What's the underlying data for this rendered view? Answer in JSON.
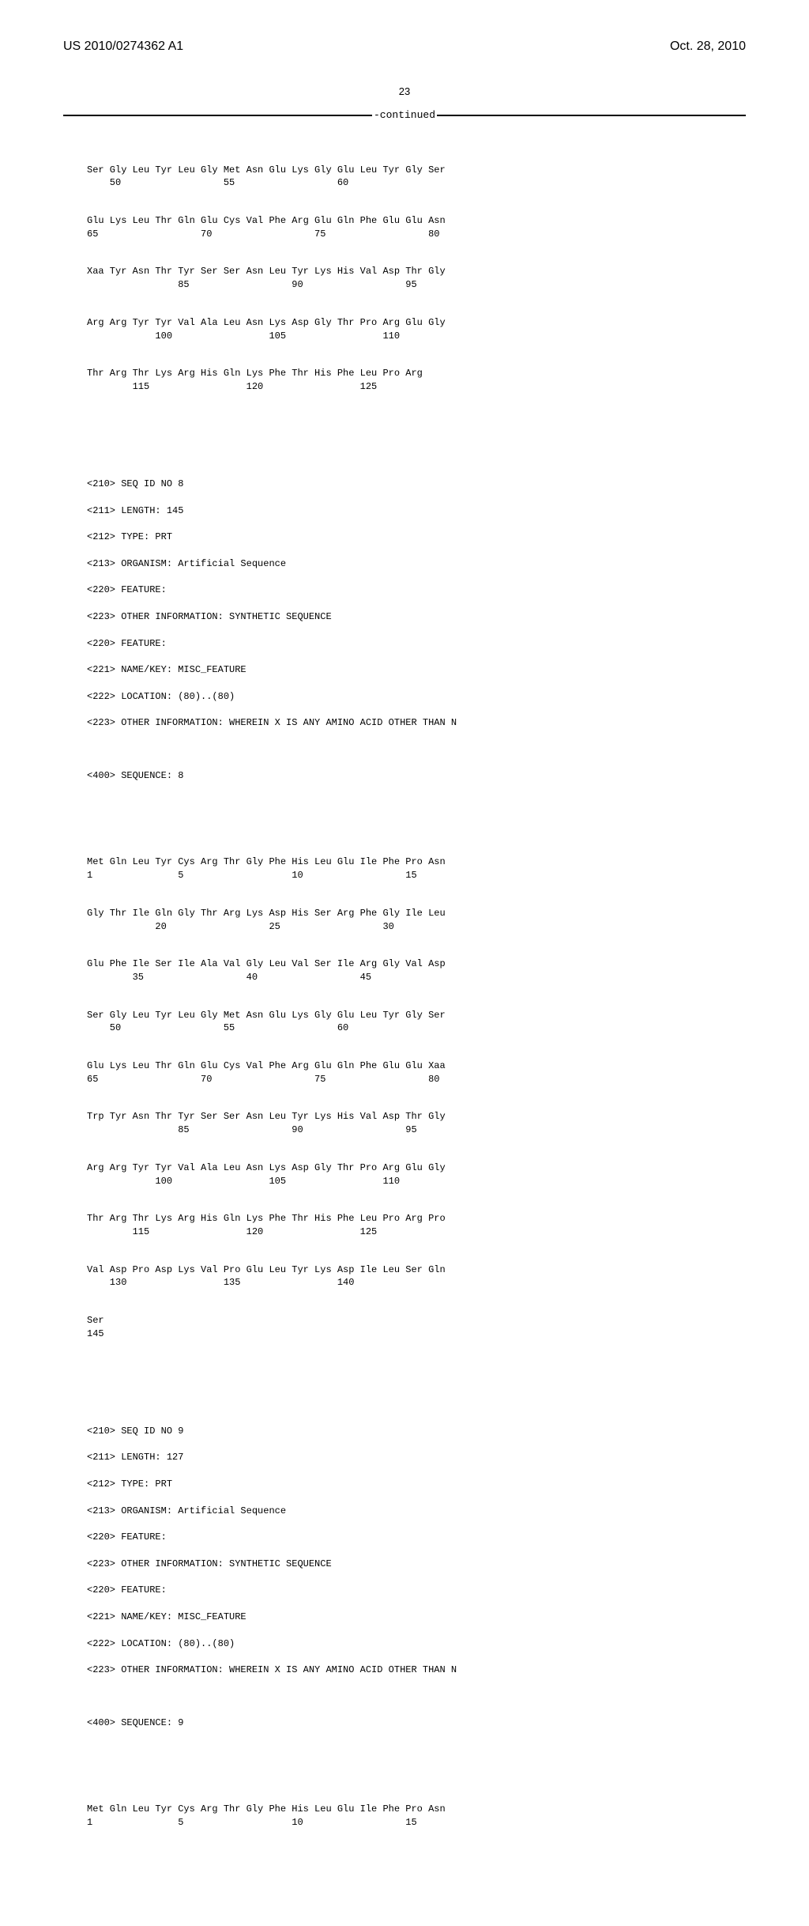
{
  "header": {
    "pub_number": "US 2010/0274362 A1",
    "pub_date": "Oct. 28, 2010"
  },
  "page_number": "23",
  "continued": "-continued",
  "seq7_continuation": {
    "rows": [
      {
        "aa": "Ser Gly Leu Tyr Leu Gly Met Asn Glu Lys Gly Glu Leu Tyr Gly Ser",
        "pos": "    50                  55                  60"
      },
      {
        "aa": "Glu Lys Leu Thr Gln Glu Cys Val Phe Arg Glu Gln Phe Glu Glu Asn",
        "pos": "65                  70                  75                  80"
      },
      {
        "aa": "Xaa Tyr Asn Thr Tyr Ser Ser Asn Leu Tyr Lys His Val Asp Thr Gly",
        "pos": "                85                  90                  95"
      },
      {
        "aa": "Arg Arg Tyr Tyr Val Ala Leu Asn Lys Asp Gly Thr Pro Arg Glu Gly",
        "pos": "            100                 105                 110"
      },
      {
        "aa": "Thr Arg Thr Lys Arg His Gln Lys Phe Thr His Phe Leu Pro Arg",
        "pos": "        115                 120                 125"
      }
    ]
  },
  "seq8_header": {
    "lines": [
      "<210> SEQ ID NO 8",
      "<211> LENGTH: 145",
      "<212> TYPE: PRT",
      "<213> ORGANISM: Artificial Sequence",
      "<220> FEATURE:",
      "<223> OTHER INFORMATION: SYNTHETIC SEQUENCE",
      "<220> FEATURE:",
      "<221> NAME/KEY: MISC_FEATURE",
      "<222> LOCATION: (80)..(80)",
      "<223> OTHER INFORMATION: WHEREIN X IS ANY AMINO ACID OTHER THAN N"
    ],
    "seq_label": "<400> SEQUENCE: 8"
  },
  "seq8_body": {
    "rows": [
      {
        "aa": "Met Gln Leu Tyr Cys Arg Thr Gly Phe His Leu Glu Ile Phe Pro Asn",
        "pos": "1               5                   10                  15"
      },
      {
        "aa": "Gly Thr Ile Gln Gly Thr Arg Lys Asp His Ser Arg Phe Gly Ile Leu",
        "pos": "            20                  25                  30"
      },
      {
        "aa": "Glu Phe Ile Ser Ile Ala Val Gly Leu Val Ser Ile Arg Gly Val Asp",
        "pos": "        35                  40                  45"
      },
      {
        "aa": "Ser Gly Leu Tyr Leu Gly Met Asn Glu Lys Gly Glu Leu Tyr Gly Ser",
        "pos": "    50                  55                  60"
      },
      {
        "aa": "Glu Lys Leu Thr Gln Glu Cys Val Phe Arg Glu Gln Phe Glu Glu Xaa",
        "pos": "65                  70                  75                  80"
      },
      {
        "aa": "Trp Tyr Asn Thr Tyr Ser Ser Asn Leu Tyr Lys His Val Asp Thr Gly",
        "pos": "                85                  90                  95"
      },
      {
        "aa": "Arg Arg Tyr Tyr Val Ala Leu Asn Lys Asp Gly Thr Pro Arg Glu Gly",
        "pos": "            100                 105                 110"
      },
      {
        "aa": "Thr Arg Thr Lys Arg His Gln Lys Phe Thr His Phe Leu Pro Arg Pro",
        "pos": "        115                 120                 125"
      },
      {
        "aa": "Val Asp Pro Asp Lys Val Pro Glu Leu Tyr Lys Asp Ile Leu Ser Gln",
        "pos": "    130                 135                 140"
      },
      {
        "aa": "Ser",
        "pos": "145"
      }
    ]
  },
  "seq9_header": {
    "lines": [
      "<210> SEQ ID NO 9",
      "<211> LENGTH: 127",
      "<212> TYPE: PRT",
      "<213> ORGANISM: Artificial Sequence",
      "<220> FEATURE:",
      "<223> OTHER INFORMATION: SYNTHETIC SEQUENCE",
      "<220> FEATURE:",
      "<221> NAME/KEY: MISC_FEATURE",
      "<222> LOCATION: (80)..(80)",
      "<223> OTHER INFORMATION: WHEREIN X IS ANY AMINO ACID OTHER THAN N"
    ],
    "seq_label": "<400> SEQUENCE: 9"
  },
  "seq9_body": {
    "rows": [
      {
        "aa": "Met Gln Leu Tyr Cys Arg Thr Gly Phe His Leu Glu Ile Phe Pro Asn",
        "pos": "1               5                   10                  15"
      }
    ]
  }
}
